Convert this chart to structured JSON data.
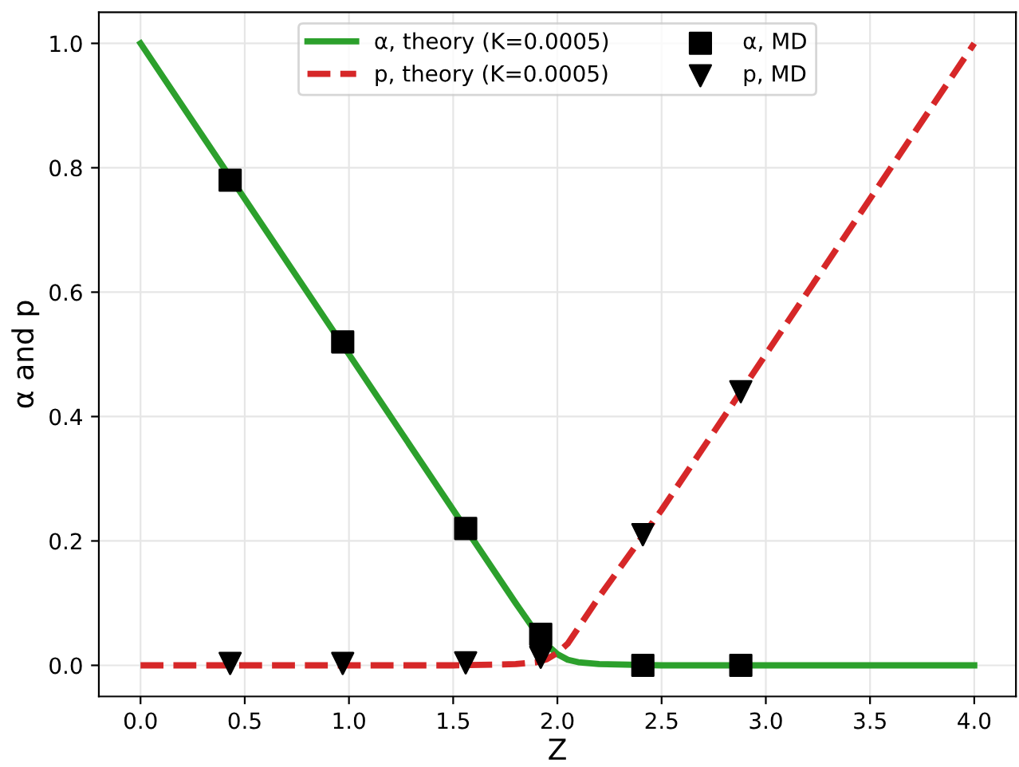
{
  "chart_data": {
    "type": "line",
    "xlabel": "Z",
    "ylabel": "α and p",
    "xlim": [
      -0.2,
      4.2
    ],
    "ylim": [
      -0.05,
      1.05
    ],
    "xticks": [
      {
        "value": 0,
        "label": "0.0"
      },
      0.5,
      {
        "value": 1,
        "label": "1.0"
      },
      1.5,
      {
        "value": 2,
        "label": "2.0"
      },
      2.5,
      {
        "value": 3,
        "label": "3.0"
      },
      3.5,
      {
        "value": 4,
        "label": "4.0"
      }
    ],
    "yticks": [
      {
        "value": 0,
        "label": "0.0"
      },
      0.2,
      0.4,
      0.6,
      0.8,
      {
        "value": 1,
        "label": "1.0"
      }
    ],
    "grid": true,
    "legend": "top",
    "series": [
      {
        "name": "α, theory (K=0.0005)",
        "color": "#2ca02c",
        "line_style": "solid",
        "marker": "none",
        "x": [
          0,
          0.5,
          1.0,
          1.5,
          1.8,
          1.9,
          1.95,
          2.0,
          2.05,
          2.1,
          2.2,
          2.5,
          3.0,
          4.0
        ],
        "values": [
          1.0,
          0.75,
          0.5,
          0.25,
          0.1,
          0.052,
          0.033,
          0.018,
          0.009,
          0.005,
          0.002,
          0.0,
          0.0,
          0.0
        ]
      },
      {
        "name": "p, theory (K=0.0005)",
        "color": "#d62728",
        "line_style": "dashed",
        "marker": "none",
        "x": [
          0,
          1.5,
          1.8,
          1.9,
          1.95,
          2.0,
          2.05,
          2.1,
          2.2,
          2.5,
          3.0,
          3.5,
          4.0
        ],
        "values": [
          0.0,
          0.0,
          0.002,
          0.005,
          0.01,
          0.02,
          0.035,
          0.06,
          0.11,
          0.25,
          0.5,
          0.75,
          1.0
        ]
      },
      {
        "name": "α, MD",
        "type": "scatter",
        "color": "#000000",
        "marker": "square",
        "x": [
          0.43,
          0.97,
          1.56,
          1.92,
          2.41,
          2.88
        ],
        "values": [
          0.78,
          0.52,
          0.22,
          0.05,
          0.0,
          0.0
        ]
      },
      {
        "name": "p, MD",
        "type": "scatter",
        "color": "#000000",
        "marker": "triangle",
        "x": [
          0.43,
          0.97,
          1.56,
          1.92,
          2.41,
          2.88
        ],
        "values": [
          0.003,
          0.003,
          0.004,
          0.013,
          0.21,
          0.44
        ]
      }
    ]
  }
}
